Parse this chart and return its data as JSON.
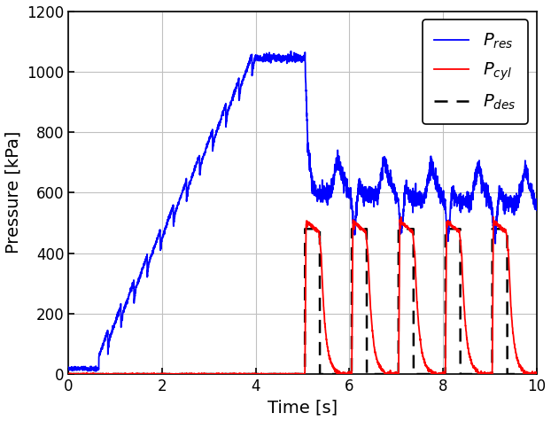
{
  "xlabel": "Time [s]",
  "ylabel": "Pressure [kPa]",
  "xlim": [
    0,
    10
  ],
  "ylim": [
    0,
    1200
  ],
  "yticks": [
    0,
    200,
    400,
    600,
    800,
    1000,
    1200
  ],
  "xticks": [
    0,
    2,
    4,
    6,
    8,
    10
  ],
  "line_colors": {
    "res": "#0000FF",
    "cyl": "#FF0000",
    "des": "#000000"
  },
  "background_color": "#ffffff",
  "grid_color": "#c0c0c0",
  "p_res_start_t": 0.65,
  "p_res_plateau_val": 1045,
  "p_res_plateau_start": 4.0,
  "p_res_plateau_end": 5.05,
  "p_res_drop_to": 500,
  "p_cyl_peak": 500,
  "p_des_level": 480,
  "cycle_start": 5.05,
  "cycle_period": 1.0,
  "num_cycles": 5,
  "sawtooth_period": 0.28,
  "sawtooth_amp": 60
}
